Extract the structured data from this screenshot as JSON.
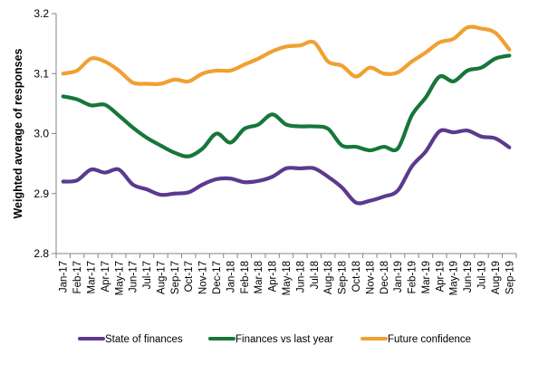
{
  "chart_data": {
    "type": "line",
    "title": "",
    "xlabel": "",
    "ylabel": "Weighted average of responses",
    "ylim": [
      2.8,
      3.2
    ],
    "yticks": [
      "2.8",
      "2.9",
      "3.0",
      "3.1",
      "3.2"
    ],
    "ytick_values": [
      2.8,
      2.9,
      3.0,
      3.1,
      3.2
    ],
    "grid": false,
    "legend_position": "bottom",
    "categories": [
      "Jan-17",
      "Feb-17",
      "Mar-17",
      "Apr-17",
      "May-17",
      "Jun-17",
      "Jul-17",
      "Aug-17",
      "Sep-17",
      "Oct-17",
      "Nov-17",
      "Dec-17",
      "Jan-18",
      "Feb-18",
      "Mar-18",
      "Apr-18",
      "May-18",
      "Jun-18",
      "Jul-18",
      "Aug-18",
      "Sep-18",
      "Oct-18",
      "Nov-18",
      "Dec-18",
      "Jan-19",
      "Feb-19",
      "Mar-19",
      "Apr-19",
      "May-19",
      "Jun-19",
      "Jul-19",
      "Aug-19",
      "Sep-19"
    ],
    "series": [
      {
        "name": "State of finances",
        "color": "#5b3a8e",
        "values": [
          2.92,
          2.922,
          2.94,
          2.935,
          2.94,
          2.915,
          2.907,
          2.898,
          2.9,
          2.902,
          2.915,
          2.924,
          2.925,
          2.919,
          2.921,
          2.928,
          2.942,
          2.942,
          2.942,
          2.928,
          2.91,
          2.885,
          2.888,
          2.895,
          2.905,
          2.945,
          2.97,
          3.004,
          3.002,
          3.005,
          2.995,
          2.992,
          2.977
        ]
      },
      {
        "name": "Finances vs last year",
        "color": "#17763a",
        "values": [
          3.062,
          3.057,
          3.047,
          3.048,
          3.03,
          3.01,
          2.993,
          2.98,
          2.968,
          2.962,
          2.975,
          3.0,
          2.985,
          3.008,
          3.015,
          3.032,
          3.015,
          3.012,
          3.012,
          3.008,
          2.98,
          2.978,
          2.972,
          2.978,
          2.975,
          3.03,
          3.06,
          3.095,
          3.087,
          3.105,
          3.11,
          3.125,
          3.13
        ]
      },
      {
        "name": "Future confidence",
        "color": "#f0a032",
        "values": [
          3.1,
          3.105,
          3.125,
          3.12,
          3.105,
          3.085,
          3.083,
          3.083,
          3.09,
          3.087,
          3.1,
          3.105,
          3.105,
          3.115,
          3.125,
          3.137,
          3.145,
          3.147,
          3.152,
          3.12,
          3.113,
          3.095,
          3.11,
          3.1,
          3.102,
          3.12,
          3.135,
          3.152,
          3.158,
          3.177,
          3.175,
          3.168,
          3.14
        ]
      }
    ]
  }
}
